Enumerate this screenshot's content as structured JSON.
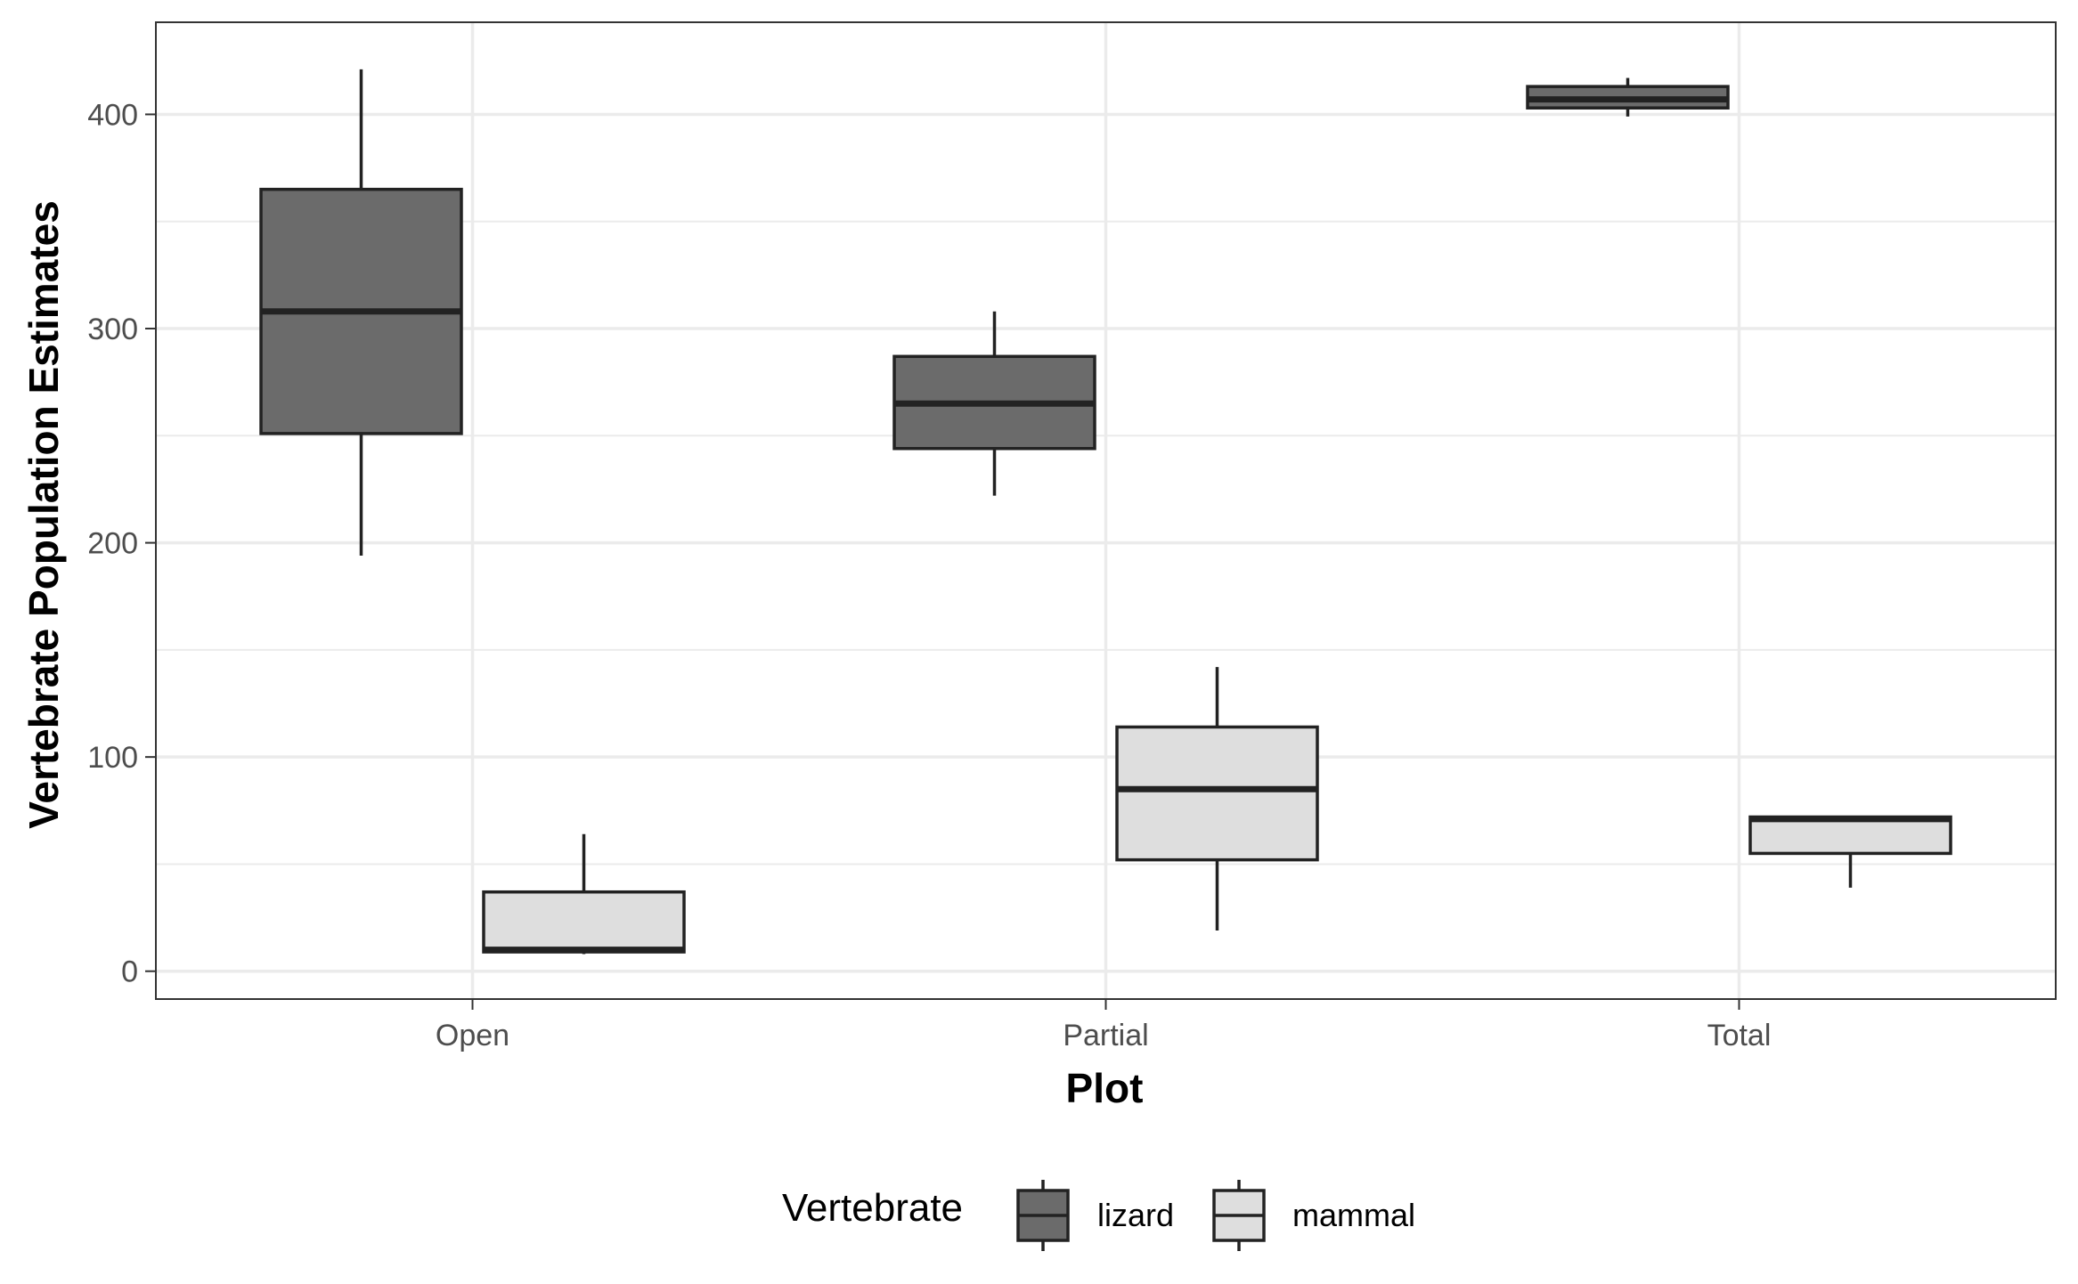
{
  "chart_data": {
    "type": "boxplot",
    "xlabel": "Plot",
    "ylabel": "Vertebrate Population Estimates",
    "categories": [
      "Open",
      "Partial",
      "Total"
    ],
    "ylim": [
      -13,
      443
    ],
    "yticks": [
      0,
      100,
      200,
      300,
      400
    ],
    "grid": true,
    "legend": {
      "title": "Vertebrate",
      "placement": "bottom",
      "entries": [
        "lizard",
        "mammal"
      ]
    },
    "series": [
      {
        "name": "lizard",
        "color": "#6b6b6b",
        "boxes": [
          {
            "category": "Open",
            "min": 194,
            "q1": 251,
            "median": 308,
            "q3": 365,
            "max": 421
          },
          {
            "category": "Partial",
            "min": 222,
            "q1": 244,
            "median": 265,
            "q3": 287,
            "max": 308
          },
          {
            "category": "Total",
            "min": 399,
            "q1": 403,
            "median": 407,
            "q3": 413,
            "max": 417
          }
        ]
      },
      {
        "name": "mammal",
        "color": "#dedede",
        "boxes": [
          {
            "category": "Open",
            "min": 8,
            "q1": 9,
            "median": 10,
            "q3": 37,
            "max": 64
          },
          {
            "category": "Partial",
            "min": 19,
            "q1": 52,
            "median": 85,
            "q3": 114,
            "max": 142
          },
          {
            "category": "Total",
            "min": 39,
            "q1": 55,
            "median": 71,
            "q3": 72,
            "max": 72
          }
        ]
      }
    ]
  },
  "colors": {
    "grid": "#ebebeb",
    "line": "#222222",
    "axis_text": "#4d4d4d",
    "panel_border": "#333333"
  }
}
